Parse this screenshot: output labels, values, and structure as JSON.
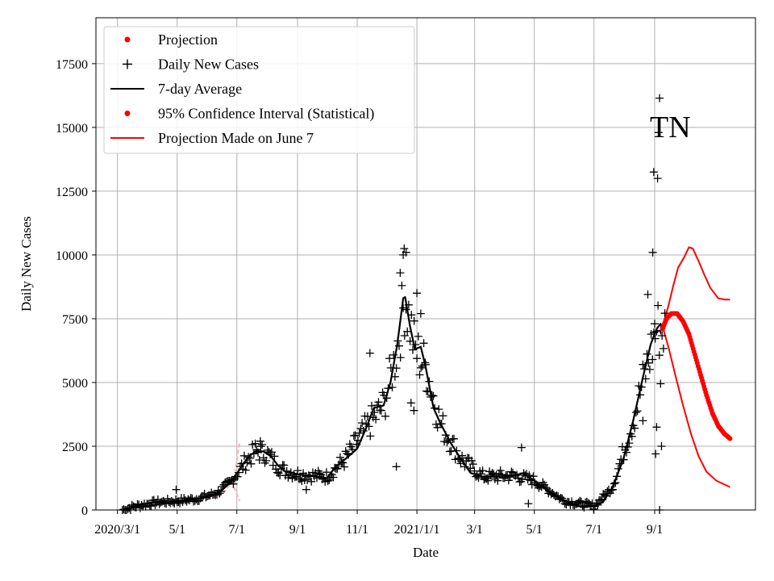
{
  "chart_data": {
    "type": "line",
    "xlabel": "Date",
    "ylabel": "Daily New Cases",
    "annotation": "TN",
    "x_range": [
      "2020-02-08",
      "2021-12-13"
    ],
    "ylim": [
      0,
      19300
    ],
    "grid": true,
    "legend_position": "top-left",
    "x_ticks": [
      {
        "date": "2020-03-01",
        "label": "2020/3/1"
      },
      {
        "date": "2020-05-01",
        "label": "5/1"
      },
      {
        "date": "2020-07-01",
        "label": "7/1"
      },
      {
        "date": "2020-09-01",
        "label": "9/1"
      },
      {
        "date": "2020-11-01",
        "label": "11/1"
      },
      {
        "date": "2021-01-01",
        "label": "2021/1/1"
      },
      {
        "date": "2021-03-01",
        "label": "3/1"
      },
      {
        "date": "2021-05-01",
        "label": "5/1"
      },
      {
        "date": "2021-07-01",
        "label": "7/1"
      },
      {
        "date": "2021-09-01",
        "label": "9/1"
      }
    ],
    "y_ticks": [
      0,
      2500,
      5000,
      7500,
      10000,
      12500,
      15000,
      17500
    ],
    "legend": [
      {
        "label": "Projection",
        "marker": "dot",
        "color": "#ff0000"
      },
      {
        "label": "Daily New Cases",
        "marker": "plus",
        "color": "#000000"
      },
      {
        "label": "7-day Average",
        "marker": "line",
        "color": "#000000"
      },
      {
        "label": "95% Confidence Interval (Statistical)",
        "marker": "dot",
        "color": "#ff0000"
      },
      {
        "label": "Projection Made on June 7",
        "marker": "line",
        "color": "#ff0000"
      }
    ],
    "series": [
      {
        "name": "7-day Average",
        "style": "line",
        "color": "#000000",
        "points": [
          [
            "2020-03-06",
            0
          ],
          [
            "2020-03-15",
            80
          ],
          [
            "2020-03-25",
            200
          ],
          [
            "2020-04-05",
            300
          ],
          [
            "2020-04-20",
            320
          ],
          [
            "2020-05-05",
            350
          ],
          [
            "2020-05-20",
            420
          ],
          [
            "2020-06-05",
            550
          ],
          [
            "2020-06-15",
            750
          ],
          [
            "2020-06-25",
            1100
          ],
          [
            "2020-07-05",
            1650
          ],
          [
            "2020-07-12",
            2050
          ],
          [
            "2020-07-20",
            2300
          ],
          [
            "2020-07-28",
            2300
          ],
          [
            "2020-08-05",
            2100
          ],
          [
            "2020-08-12",
            1750
          ],
          [
            "2020-08-20",
            1500
          ],
          [
            "2020-09-01",
            1400
          ],
          [
            "2020-09-15",
            1350
          ],
          [
            "2020-10-01",
            1250
          ],
          [
            "2020-10-10",
            1700
          ],
          [
            "2020-10-20",
            2000
          ],
          [
            "2020-11-01",
            2400
          ],
          [
            "2020-11-10",
            3200
          ],
          [
            "2020-11-18",
            4000
          ],
          [
            "2020-11-28",
            4100
          ],
          [
            "2020-12-05",
            5000
          ],
          [
            "2020-12-12",
            6500
          ],
          [
            "2020-12-18",
            8300
          ],
          [
            "2020-12-20",
            8350
          ],
          [
            "2020-12-25",
            7200
          ],
          [
            "2020-12-30",
            6300
          ],
          [
            "2021-01-05",
            6400
          ],
          [
            "2021-01-10",
            5600
          ],
          [
            "2021-01-18",
            4000
          ],
          [
            "2021-01-25",
            3400
          ],
          [
            "2021-02-05",
            2600
          ],
          [
            "2021-02-15",
            2000
          ],
          [
            "2021-02-25",
            1450
          ],
          [
            "2021-03-10",
            1300
          ],
          [
            "2021-03-25",
            1300
          ],
          [
            "2021-04-10",
            1350
          ],
          [
            "2021-04-20",
            1450
          ],
          [
            "2021-05-01",
            1150
          ],
          [
            "2021-05-15",
            750
          ],
          [
            "2021-06-01",
            350
          ],
          [
            "2021-06-15",
            150
          ],
          [
            "2021-07-01",
            150
          ],
          [
            "2021-07-10",
            300
          ],
          [
            "2021-07-20",
            900
          ],
          [
            "2021-07-31",
            2000
          ],
          [
            "2021-08-10",
            3500
          ],
          [
            "2021-08-20",
            5200
          ],
          [
            "2021-08-28",
            6500
          ],
          [
            "2021-09-03",
            7100
          ],
          [
            "2021-09-07",
            7300
          ],
          [
            "2021-09-10",
            7050
          ]
        ]
      },
      {
        "name": "Daily New Cases",
        "style": "plus",
        "color": "#000000",
        "anchors": [
          [
            "2020-03-06",
            0
          ],
          [
            "2020-03-20",
            150
          ],
          [
            "2020-04-10",
            300
          ],
          [
            "2020-05-01",
            350
          ],
          [
            "2020-05-20",
            430
          ],
          [
            "2020-06-10",
            650
          ],
          [
            "2020-06-25",
            1100
          ],
          [
            "2020-07-10",
            1900
          ],
          [
            "2020-07-20",
            2300
          ],
          [
            "2020-08-01",
            2200
          ],
          [
            "2020-08-15",
            1600
          ],
          [
            "2020-09-01",
            1400
          ],
          [
            "2020-10-01",
            1300
          ],
          [
            "2020-10-20",
            2000
          ],
          [
            "2020-11-10",
            3200
          ],
          [
            "2020-11-28",
            4100
          ],
          [
            "2020-12-10",
            6000
          ],
          [
            "2020-12-20",
            8350
          ],
          [
            "2020-12-30",
            6300
          ],
          [
            "2021-01-10",
            5600
          ],
          [
            "2021-01-25",
            3400
          ],
          [
            "2021-02-15",
            2000
          ],
          [
            "2021-03-10",
            1300
          ],
          [
            "2021-04-10",
            1350
          ],
          [
            "2021-05-01",
            1150
          ],
          [
            "2021-06-01",
            350
          ],
          [
            "2021-07-01",
            150
          ],
          [
            "2021-07-20",
            900
          ],
          [
            "2021-08-10",
            3500
          ],
          [
            "2021-09-03",
            7100
          ],
          [
            "2021-09-12",
            7000
          ]
        ],
        "outliers": [
          [
            "2020-04-30",
            800
          ],
          [
            "2020-07-25",
            2700
          ],
          [
            "2020-09-10",
            800
          ],
          [
            "2020-11-14",
            6150
          ],
          [
            "2020-12-11",
            1700
          ],
          [
            "2020-12-15",
            9300
          ],
          [
            "2020-12-18",
            10000
          ],
          [
            "2020-12-19",
            10250
          ],
          [
            "2020-12-21",
            10100
          ],
          [
            "2020-12-26",
            4200
          ],
          [
            "2020-12-29",
            3900
          ],
          [
            "2021-01-01",
            8500
          ],
          [
            "2021-01-05",
            7700
          ],
          [
            "2021-01-10",
            5700
          ],
          [
            "2021-04-18",
            2450
          ],
          [
            "2021-04-25",
            250
          ],
          [
            "2021-08-20",
            3500
          ],
          [
            "2021-08-25",
            8450
          ],
          [
            "2021-08-30",
            10100
          ],
          [
            "2021-08-31",
            13250
          ],
          [
            "2021-09-03",
            3250
          ],
          [
            "2021-09-04",
            13000
          ],
          [
            "2021-09-05",
            14800
          ],
          [
            "2021-09-06",
            16150
          ],
          [
            "2021-09-07",
            4950
          ],
          [
            "2021-09-08",
            2500
          ],
          [
            "2021-09-02",
            2200
          ],
          [
            "2021-09-01",
            7300
          ],
          [
            "2021-09-06",
            0
          ]
        ]
      },
      {
        "name": "Projection",
        "style": "dots",
        "color": "#ff0000",
        "points": [
          [
            "2021-09-09",
            7100
          ],
          [
            "2021-09-13",
            7500
          ],
          [
            "2021-09-18",
            7700
          ],
          [
            "2021-09-24",
            7700
          ],
          [
            "2021-09-30",
            7400
          ],
          [
            "2021-10-06",
            6900
          ],
          [
            "2021-10-12",
            6100
          ],
          [
            "2021-10-18",
            5300
          ],
          [
            "2021-10-24",
            4500
          ],
          [
            "2021-10-30",
            3800
          ],
          [
            "2021-11-05",
            3300
          ],
          [
            "2021-11-11",
            3000
          ],
          [
            "2021-11-17",
            2800
          ]
        ]
      },
      {
        "name": "95% Confidence Interval (Statistical) upper",
        "style": "line",
        "color": "#ff0000",
        "points": [
          [
            "2021-09-09",
            7200
          ],
          [
            "2021-09-15",
            8000
          ],
          [
            "2021-09-20",
            8800
          ],
          [
            "2021-09-25",
            9500
          ],
          [
            "2021-10-01",
            9900
          ],
          [
            "2021-10-06",
            10300
          ],
          [
            "2021-10-10",
            10250
          ],
          [
            "2021-10-16",
            9750
          ],
          [
            "2021-10-22",
            9200
          ],
          [
            "2021-10-28",
            8700
          ],
          [
            "2021-11-05",
            8300
          ],
          [
            "2021-11-12",
            8250
          ],
          [
            "2021-11-17",
            8250
          ]
        ]
      },
      {
        "name": "95% Confidence Interval (Statistical) lower",
        "style": "line",
        "color": "#ff0000",
        "points": [
          [
            "2021-09-09",
            7200
          ],
          [
            "2021-09-15",
            6400
          ],
          [
            "2021-09-22",
            5300
          ],
          [
            "2021-09-30",
            4100
          ],
          [
            "2021-10-08",
            3000
          ],
          [
            "2021-10-16",
            2100
          ],
          [
            "2021-10-24",
            1500
          ],
          [
            "2021-11-03",
            1150
          ],
          [
            "2021-11-17",
            900
          ]
        ]
      },
      {
        "name": "Projection Made on June 7",
        "style": "faded",
        "color": "#f4b6b6",
        "points": [
          [
            "2020-06-12",
            500
          ],
          [
            "2020-06-18",
            700
          ],
          [
            "2020-06-24",
            1000
          ],
          [
            "2020-06-28",
            1200
          ],
          [
            "2020-07-02",
            1400
          ],
          [
            "2020-07-04",
            2700
          ],
          [
            "2020-06-28",
            900
          ],
          [
            "2020-07-04",
            350
          ]
        ]
      }
    ]
  }
}
